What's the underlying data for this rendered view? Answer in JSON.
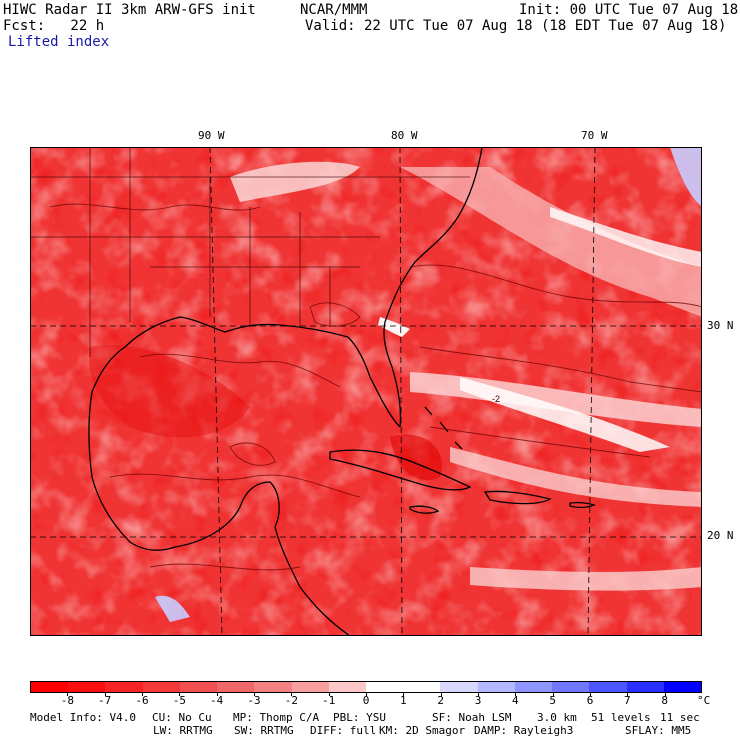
{
  "header": {
    "line1_left": "HIWC Radar II 3km ARW-GFS init",
    "line1_mid": "NCAR/MMM",
    "line1_right": "Init: 00 UTC Tue 07 Aug 18",
    "line2_left": "Fcst:   22 h",
    "line2_right": "Valid: 22 UTC Tue 07 Aug 18 (18 EDT Tue 07 Aug 18)",
    "field_name": "Lifted index"
  },
  "map": {
    "longitude_labels": [
      "90 W",
      "80 W",
      "70 W"
    ],
    "latitude_labels": [
      "30 N",
      "20 N"
    ],
    "contour_label": "-2",
    "colors": {
      "base_red": "#f03030",
      "deep_red": "#e00000",
      "light_red": "#f58080",
      "pale": "#fbd0d0",
      "white": "#ffffff",
      "blue": "#5060ff",
      "contour": "#6a0000",
      "coast": "#000000"
    }
  },
  "colorbar": {
    "tick_labels": [
      "-8",
      "-7",
      "-6",
      "-5",
      "-4",
      "-3",
      "-2",
      "-1",
      "0",
      "1",
      "2",
      "3",
      "4",
      "5",
      "6",
      "7",
      "8"
    ],
    "unit": "°C",
    "colors": [
      "#ff0000",
      "#f80f0f",
      "#f52525",
      "#f23a3a",
      "#f25050",
      "#f26868",
      "#f58282",
      "#f8a0a0",
      "#fcc8c8",
      "#ffffff",
      "#ffffff",
      "#d8d8ff",
      "#b4b8ff",
      "#9096ff",
      "#7078ff",
      "#4c55ff",
      "#2a30ff",
      "#0000ff"
    ]
  },
  "footer": {
    "row1": {
      "model_info": "Model Info: V4.0",
      "cu": "CU: No Cu",
      "mp": "MP: Thomp C/A",
      "pbl": "PBL: YSU",
      "sf": "SF: Noah LSM",
      "res": "3.0 km",
      "levels": "51 levels",
      "dt": "11 sec"
    },
    "row2": {
      "lw": "LW: RRTMG",
      "sw": "SW: RRTMG",
      "diff": "DIFF: full",
      "km": "KM: 2D Smagor",
      "damp": "DAMP: Rayleigh3",
      "sflay": "SFLAY: MM5"
    }
  }
}
